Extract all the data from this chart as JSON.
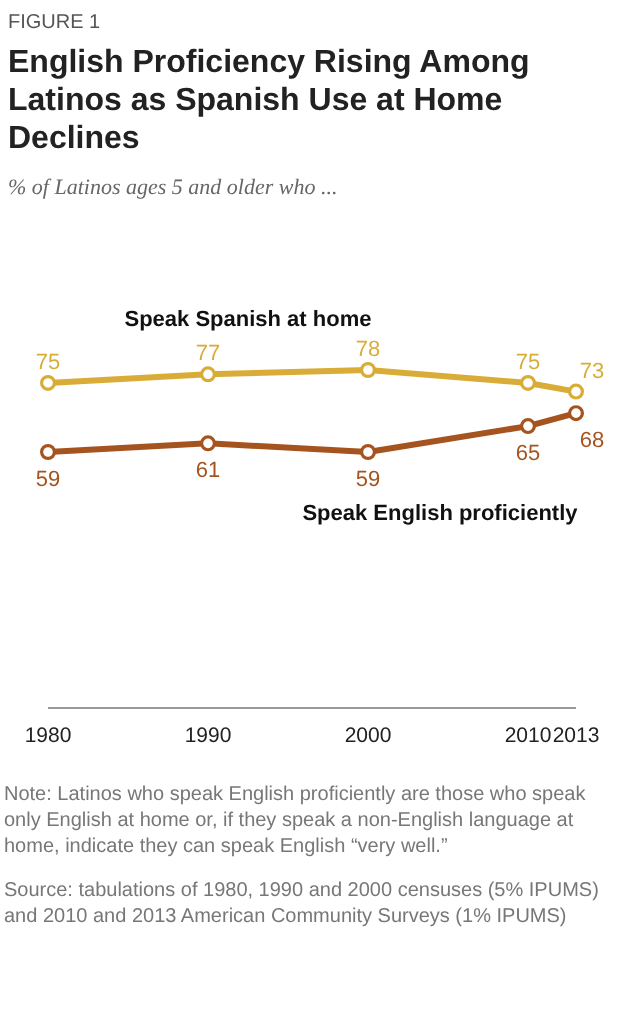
{
  "chart_data": {
    "type": "line",
    "subtitle": "% of Latinos ages 5 and older who ...",
    "title": "English Proficiency Rising Among Latinos as Spanish Use at Home Declines",
    "x": [
      1980,
      1990,
      2000,
      2010,
      2013
    ],
    "xlim": [
      1980,
      2013
    ],
    "xticks": [
      1980,
      1990,
      2000,
      2010,
      2013
    ],
    "series": [
      {
        "name": "Speak Spanish at home",
        "color": "#d8ac36",
        "values": [
          75,
          77,
          78,
          75,
          73
        ]
      },
      {
        "name": "Speak English proficiently",
        "color": "#a6541f",
        "values": [
          59,
          61,
          59,
          65,
          68
        ]
      }
    ],
    "marker": "circle",
    "line_style": "solid",
    "data_labels": true,
    "grid": false,
    "annotations": [
      "FIGURE 1",
      "Note: Latinos who speak English proficiently are those who speak only English at home or, if they speak a non-English language at home, indicate they can speak English “very well.”",
      "Source: tabulations of 1980, 1990 and 2000 censuses (5% IPUMS) and 2010 and 2013 American Community Surveys (1% IPUMS)"
    ]
  }
}
